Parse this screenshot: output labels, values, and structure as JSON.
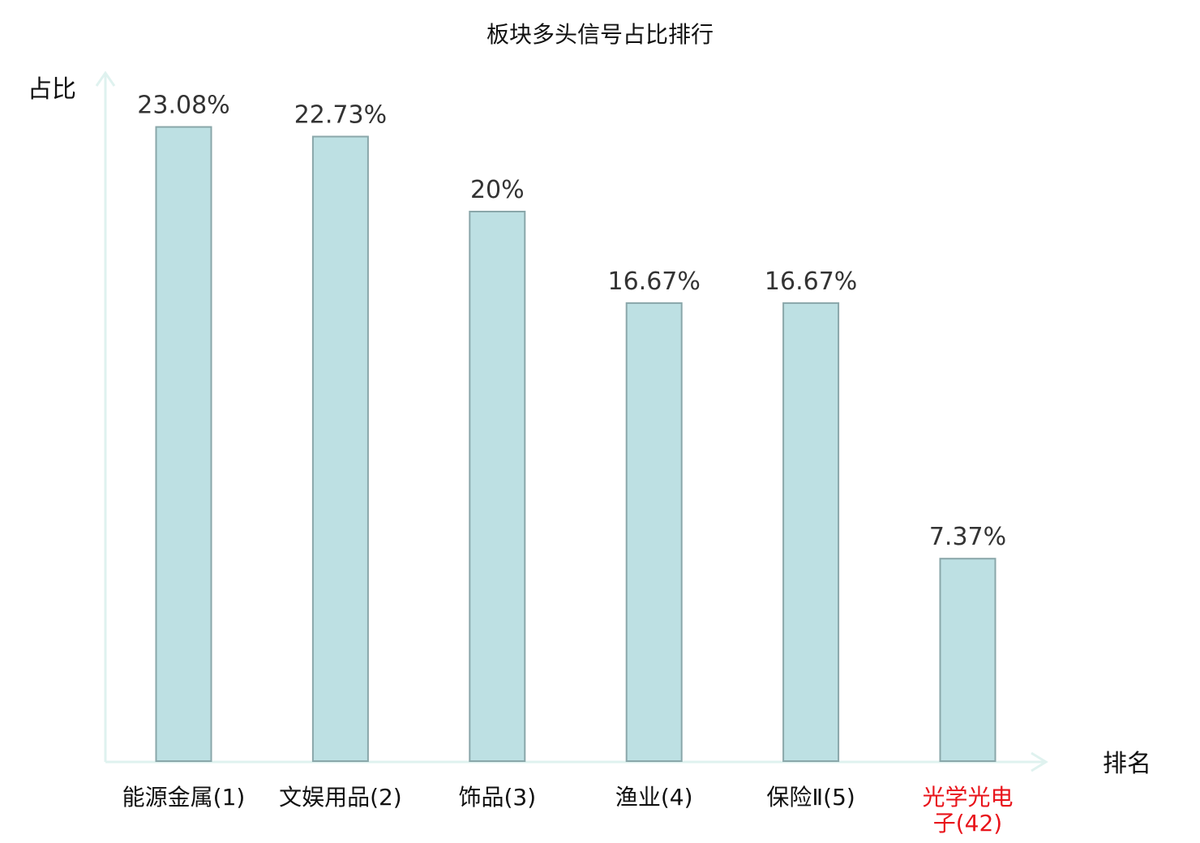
{
  "chart_data": {
    "type": "bar",
    "title": "板块多头信号占比排行",
    "xlabel": "排名",
    "ylabel": "占比",
    "categories": [
      "能源金属(1)",
      "文娱用品(2)",
      "饰品(3)",
      "渔业(4)",
      "保险Ⅱ(5)",
      "光学光电子(42)"
    ],
    "category_lines": [
      [
        "能源金属(1)"
      ],
      [
        "文娱用品(2)"
      ],
      [
        "饰品(3)"
      ],
      [
        "渔业(4)"
      ],
      [
        "保险Ⅱ(5)"
      ],
      [
        "光学光电",
        "子(42)"
      ]
    ],
    "values": [
      23.08,
      22.73,
      20,
      16.67,
      16.67,
      7.37
    ],
    "value_labels": [
      "23.08%",
      "22.73%",
      "20%",
      "16.67%",
      "16.67%",
      "7.37%"
    ],
    "highlight_index": 5,
    "ylim": [
      0,
      24
    ],
    "grid": false,
    "colors": {
      "bar_fill": "#bde0e3",
      "bar_stroke": "#8aa7aa",
      "axis": "#dff2ef",
      "highlight_text": "#e8141b"
    }
  }
}
